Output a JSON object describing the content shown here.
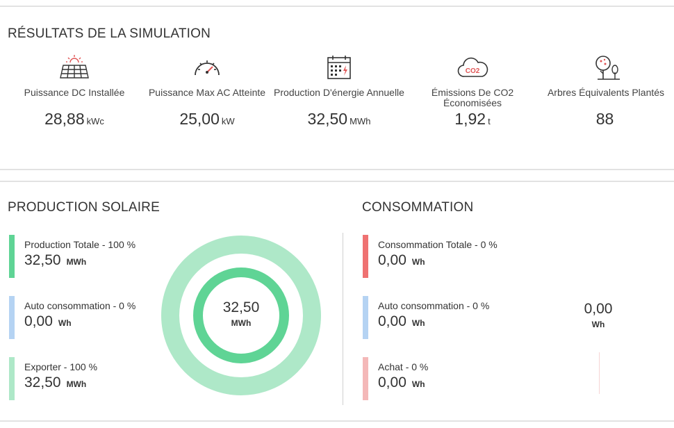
{
  "results": {
    "title": "RÉSULTATS DE LA SIMULATION",
    "kpis": [
      {
        "icon": "solar-panel-icon",
        "label": "Puissance DC Installée",
        "value": "28,88",
        "unit": "kWc"
      },
      {
        "icon": "speedometer-icon",
        "label": "Puissance Max AC Atteinte",
        "value": "25,00",
        "unit": "kW"
      },
      {
        "icon": "calendar-energy-icon",
        "label": "Production D'énergie Annuelle",
        "value": "32,50",
        "unit": "MWh"
      },
      {
        "icon": "co2-cloud-icon",
        "label": "Émissions De CO2 Économisées",
        "value": "1,92",
        "unit": "t"
      },
      {
        "icon": "trees-icon",
        "label": "Arbres Équivalents Plantés",
        "value": "88",
        "unit": ""
      }
    ]
  },
  "production": {
    "title": "PRODUCTION SOLAIRE",
    "items": [
      {
        "label": "Production Totale - 100 %",
        "value": "32,50",
        "unit": "MWh",
        "color": "#5fd495"
      },
      {
        "label": "Auto consommation - 0 %",
        "value": "0,00",
        "unit": "Wh",
        "color": "#b5d3f3"
      },
      {
        "label": "Exporter - 100 %",
        "value": "32,50",
        "unit": "MWh",
        "color": "#aee8c8"
      }
    ],
    "donut": {
      "value": "32,50",
      "unit": "MWh",
      "outer_color": "#aee8c8",
      "inner_color": "#5fd495"
    }
  },
  "consommation": {
    "title": "CONSOMMATION",
    "items": [
      {
        "label": "Consommation Totale - 0 %",
        "value": "0,00",
        "unit": "Wh",
        "color": "#ef7272"
      },
      {
        "label": "Auto consommation - 0 %",
        "value": "0,00",
        "unit": "Wh",
        "color": "#b5d3f3"
      },
      {
        "label": "Achat - 0 %",
        "value": "0,00",
        "unit": "Wh",
        "color": "#f4b8b8"
      }
    ],
    "donut": {
      "value": "0,00",
      "unit": "Wh"
    }
  }
}
